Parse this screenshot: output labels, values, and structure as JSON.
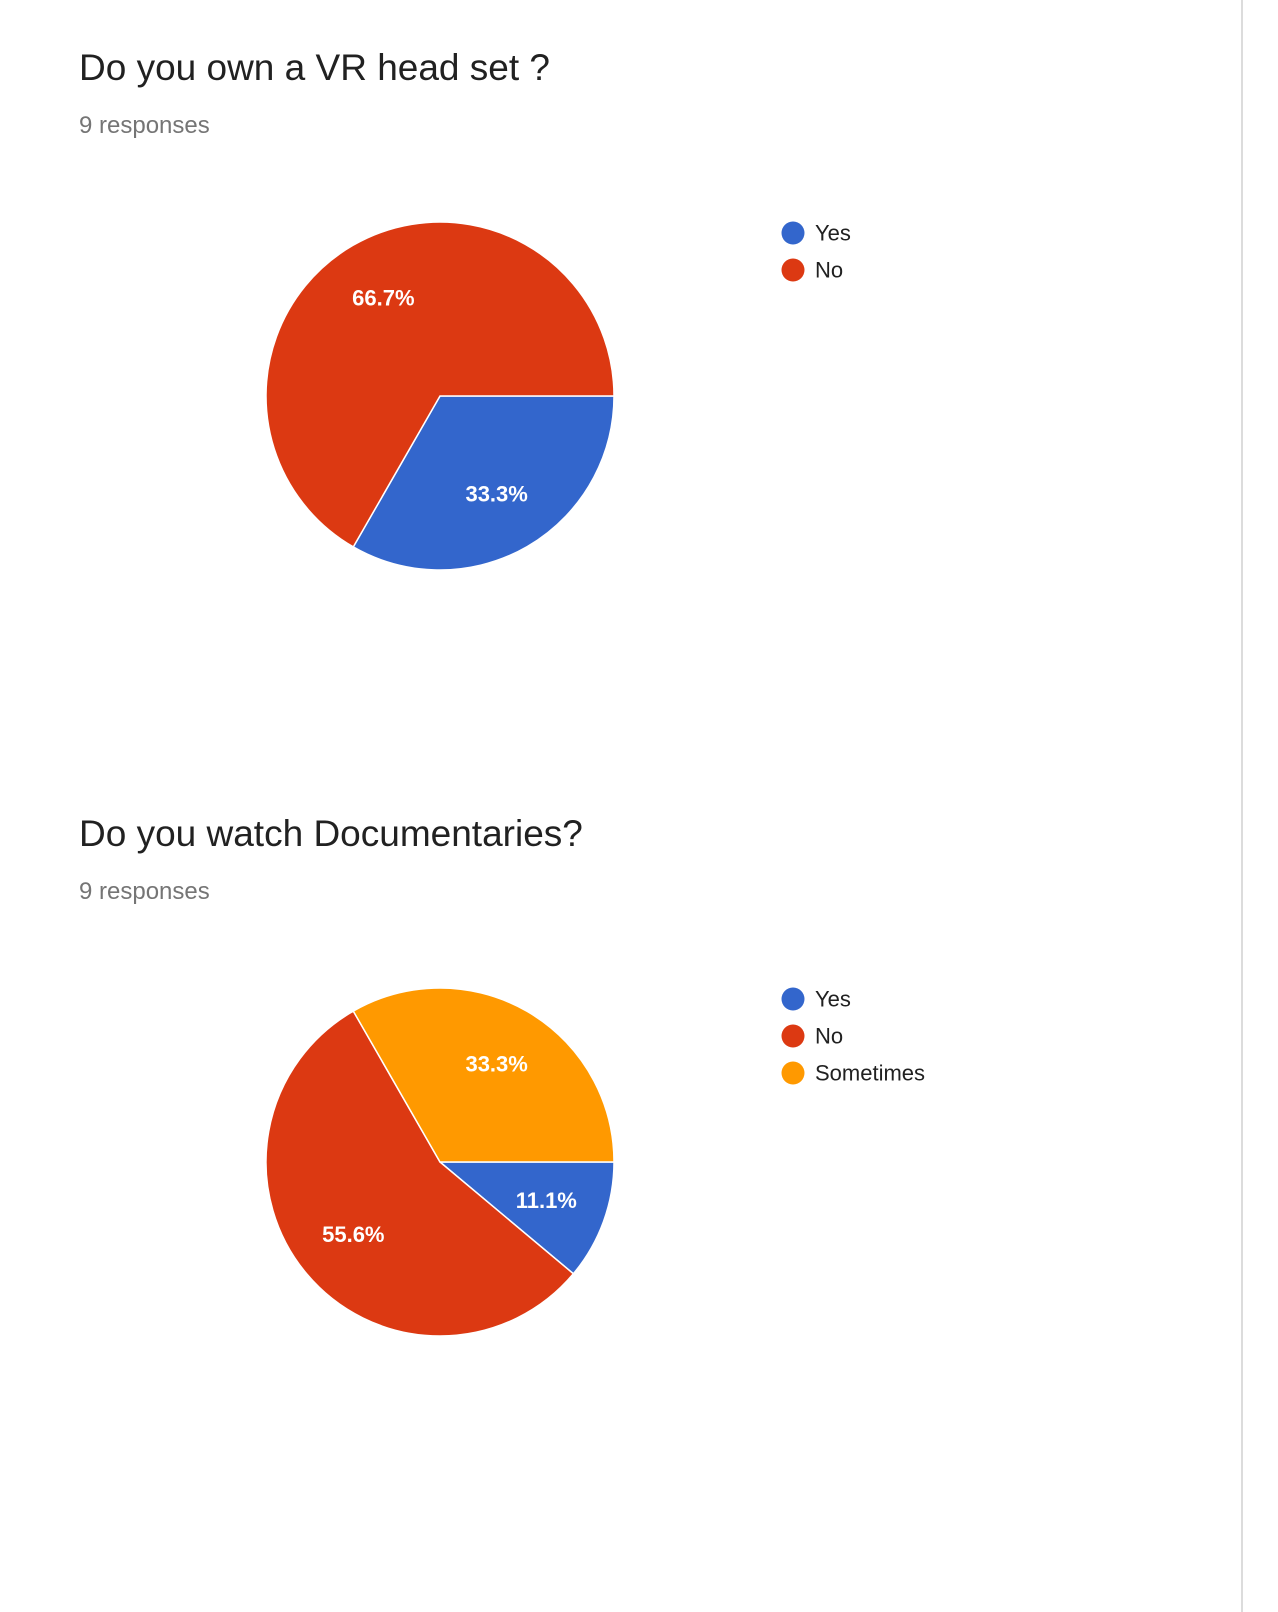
{
  "chart_data": [
    {
      "type": "pie",
      "title": "Do you own a VR head set ?",
      "subtitle": "9 responses",
      "legend_position": "right",
      "label_color": "#ffffff",
      "slice_border_color": "#ffffff",
      "slices": [
        {
          "label": "Yes",
          "value": 33.3,
          "percent_label": "33.3%",
          "color": "#3366cc"
        },
        {
          "label": "No",
          "value": 66.7,
          "percent_label": "66.7%",
          "color": "#dc3912"
        }
      ]
    },
    {
      "type": "pie",
      "title": "Do you watch Documentaries?",
      "subtitle": "9 responses",
      "legend_position": "right",
      "label_color": "#ffffff",
      "slice_border_color": "#ffffff",
      "slices": [
        {
          "label": "Yes",
          "value": 11.1,
          "percent_label": "11.1%",
          "color": "#3366cc"
        },
        {
          "label": "No",
          "value": 55.6,
          "percent_label": "55.6%",
          "color": "#dc3912"
        },
        {
          "label": "Sometimes",
          "value": 33.3,
          "percent_label": "33.3%",
          "color": "#ff9900"
        }
      ]
    }
  ]
}
